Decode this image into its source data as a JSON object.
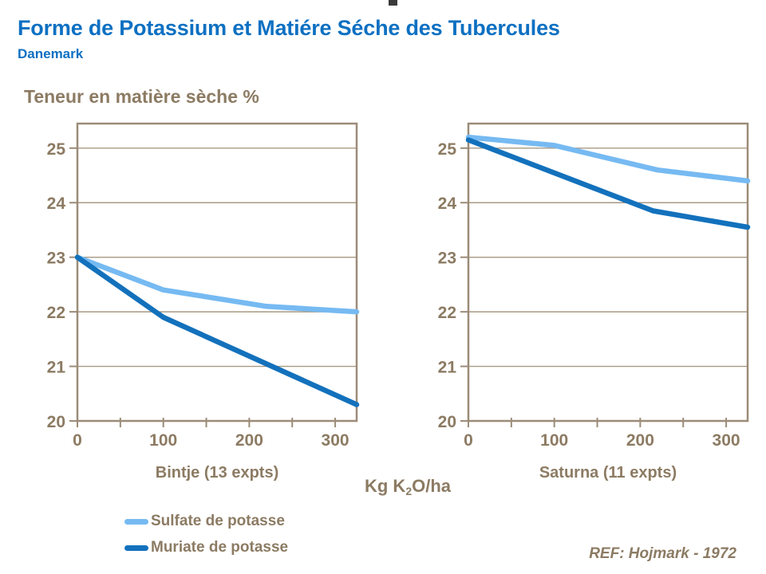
{
  "header": {
    "title": "Forme de Potassium et Matiére Séche des Tubercules",
    "subtitle": "Danemark"
  },
  "y_axis_heading": "Teneur en matière sèche %",
  "x_axis_label": {
    "prefix": "Kg K",
    "sub": "2",
    "suffix": "O/ha"
  },
  "legend": [
    {
      "label": "Sulfate de potasse",
      "color": "#76baf2"
    },
    {
      "label": "Muriate de potasse",
      "color": "#1371bc"
    }
  ],
  "reference": "REF: Hojmark - 1972",
  "colors": {
    "title_blue": "#0d70c2",
    "text_taupe": "#8c7b63",
    "frame": "#9c8c78",
    "gridline": "#a79983",
    "sulfate_light_blue": "#76baf2",
    "muriate_dark_blue": "#1371bc",
    "background": "#ffffff"
  },
  "chart_data": [
    {
      "type": "line",
      "title": "Bintje (13 expts)",
      "xlabel": "Kg K2O/ha",
      "ylabel": "Teneur en matière sèche %",
      "xlim": [
        0,
        325
      ],
      "ylim": [
        20,
        25.45
      ],
      "xticks": [
        0,
        100,
        200,
        300
      ],
      "xtick_minor_step": 50,
      "yticks": [
        20,
        21,
        22,
        23,
        24,
        25
      ],
      "grid": "horizontal",
      "legend_position": "below-left",
      "series": [
        {
          "name": "Sulfate de potasse",
          "color": "#76baf2",
          "points": [
            [
              0,
              23.0
            ],
            [
              100,
              22.4
            ],
            [
              220,
              22.1
            ],
            [
              325,
              22.0
            ]
          ]
        },
        {
          "name": "Muriate de potasse",
          "color": "#1371bc",
          "points": [
            [
              0,
              23.0
            ],
            [
              100,
              21.9
            ],
            [
              325,
              20.3
            ]
          ]
        }
      ]
    },
    {
      "type": "line",
      "title": "Saturna (11 expts)",
      "xlabel": "Kg K2O/ha",
      "ylabel": "Teneur en matière sèche %",
      "xlim": [
        0,
        325
      ],
      "ylim": [
        20,
        25.45
      ],
      "xticks": [
        0,
        100,
        200,
        300
      ],
      "xtick_minor_step": 50,
      "yticks": [
        20,
        21,
        22,
        23,
        24,
        25
      ],
      "grid": "horizontal",
      "legend_position": "below-left",
      "series": [
        {
          "name": "Sulfate de potasse",
          "color": "#76baf2",
          "points": [
            [
              0,
              25.2
            ],
            [
              100,
              25.05
            ],
            [
              220,
              24.6
            ],
            [
              325,
              24.4
            ]
          ]
        },
        {
          "name": "Muriate de potasse",
          "color": "#1371bc",
          "points": [
            [
              0,
              25.15
            ],
            [
              215,
              23.85
            ],
            [
              325,
              23.55
            ]
          ]
        }
      ]
    }
  ]
}
